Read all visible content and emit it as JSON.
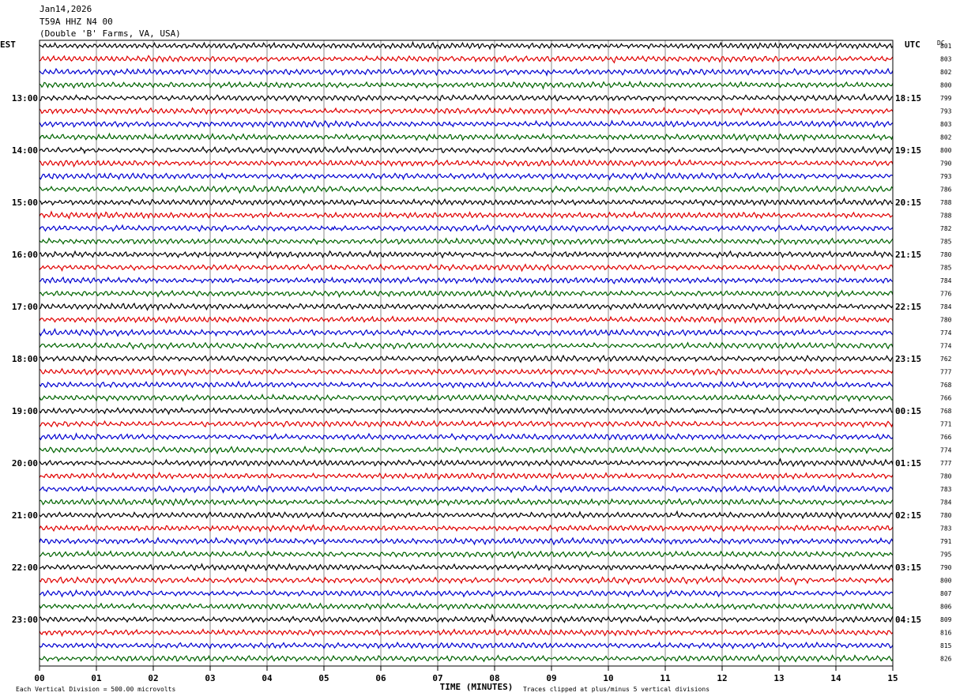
{
  "header": {
    "date": "Jan14,2026",
    "station": "T59A HHZ N4 00",
    "location": "(Double 'B' Farms, VA, USA)"
  },
  "chart_data": {
    "type": "line",
    "subtype": "helicorder",
    "left_axis_label": "EST",
    "right_axis_label": "UTC",
    "dc_label": "DC",
    "xlabel": "TIME (MINUTES)",
    "x_ticks": [
      "00",
      "01",
      "02",
      "03",
      "04",
      "05",
      "06",
      "07",
      "08",
      "09",
      "10",
      "11",
      "12",
      "13",
      "14",
      "15"
    ],
    "xlim": [
      0,
      15
    ],
    "traces_per_hour": 4,
    "trace_colors": [
      "#000000",
      "#e00000",
      "#0000d0",
      "#006400"
    ],
    "est_hour_labels": [
      "13:00",
      "14:00",
      "15:00",
      "16:00",
      "17:00",
      "18:00",
      "19:00",
      "20:00",
      "21:00",
      "22:00",
      "23:00"
    ],
    "utc_hour_labels": [
      "18:15",
      "19:15",
      "20:15",
      "21:15",
      "22:15",
      "23:15",
      "00:15",
      "01:15",
      "02:15",
      "03:15",
      "04:15"
    ],
    "dc_values": [
      "801",
      "803",
      "802",
      "800",
      "799",
      "793",
      "803",
      "802",
      "800",
      "790",
      "793",
      "786",
      "788",
      "788",
      "782",
      "785",
      "780",
      "785",
      "784",
      "776",
      "784",
      "780",
      "774",
      "774",
      "762",
      "777",
      "768",
      "766",
      "768",
      "771",
      "766",
      "774",
      "777",
      "780",
      "783",
      "784",
      "780",
      "783",
      "791",
      "795",
      "790",
      "800",
      "807",
      "806",
      "809",
      "816",
      "815",
      "826"
    ],
    "footer_left": "Each Vertical Division =  500.00 microvolts",
    "footer_right": "Traces clipped at plus/minus 5 vertical divisions"
  }
}
